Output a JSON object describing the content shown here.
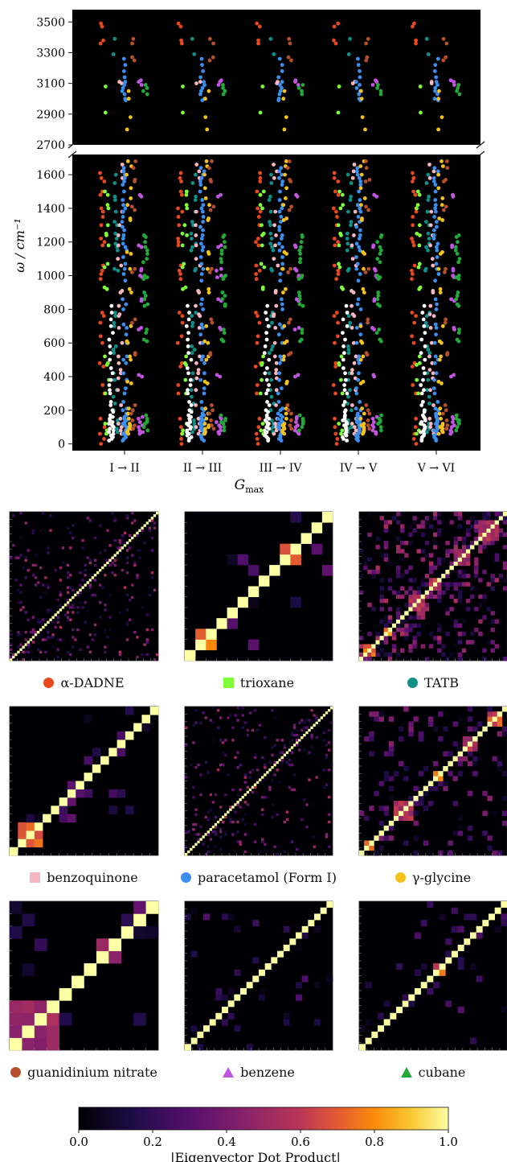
{
  "chart_data": [
    {
      "type": "scatter",
      "title": "",
      "xlabel": "G_max",
      "xlabel_main": "G",
      "xlabel_sub": "max",
      "ylabel": "ω / cm⁻¹",
      "categories": [
        "I → II",
        "II → III",
        "III → IV",
        "IV → V",
        "V → VI"
      ],
      "axis_break": true,
      "ylim_top": [
        2700,
        3580
      ],
      "ylim_bottom": [
        -40,
        1720
      ],
      "yticks_top": [
        "2700",
        "2900",
        "3100",
        "3300",
        "3500"
      ],
      "yticks_bottom": [
        "0",
        "200",
        "400",
        "600",
        "800",
        "1000",
        "1200",
        "1400",
        "1600"
      ],
      "background": "#000000",
      "series": [
        {
          "key": "dadne",
          "color": "#e8481c",
          "offset": -0.3,
          "values": [
            3490,
            3470,
            3380,
            3360,
            1610,
            1580,
            1560,
            1500,
            1480,
            1400,
            1380,
            1350,
            1300,
            1220,
            1200,
            1180,
            1060,
            1030,
            1010,
            980,
            780,
            760,
            720,
            640,
            600,
            480,
            460,
            350,
            300,
            150,
            100,
            60,
            30,
            0
          ]
        },
        {
          "key": "trioxane",
          "color": "#7fff3a",
          "offset": -0.24,
          "values": [
            3080,
            2910,
            1500,
            1480,
            1420,
            1400,
            1300,
            1250,
            1240,
            1180,
            1070,
            1050,
            930,
            920,
            520,
            480,
            470,
            380,
            300,
            120,
            80,
            60
          ]
        },
        {
          "key": "tatb",
          "color": "#0f8f85",
          "offset": -0.12,
          "values": [
            3390,
            3290,
            1600,
            1550,
            1470,
            1450,
            1380,
            1320,
            1300,
            1250,
            1220,
            1190,
            1170,
            1150,
            1040,
            1030,
            780,
            760,
            720,
            700,
            580,
            560,
            540,
            420,
            380,
            320,
            280,
            240,
            200,
            140,
            120,
            100,
            90,
            70
          ]
        },
        {
          "key": "benzoquinone",
          "color": "#f7b6c0",
          "offset": -0.06,
          "values": [
            3110,
            3100,
            1660,
            1620,
            1580,
            1380,
            1300,
            1240,
            1180,
            1100,
            1060,
            910,
            900,
            820,
            770,
            760,
            690,
            600,
            520,
            480,
            440,
            420,
            390,
            320,
            230,
            150,
            120,
            100,
            80,
            60
          ]
        },
        {
          "key": "paracetamol",
          "color": "#3a8ff0",
          "offset": 0.0,
          "values": [
            3260,
            3220,
            3180,
            3140,
            3110,
            3090,
            3070,
            3050,
            3030,
            3000,
            2990,
            1640,
            1620,
            1600,
            1580,
            1560,
            1540,
            1500,
            1450,
            1420,
            1400,
            1380,
            1350,
            1320,
            1290,
            1270,
            1240,
            1220,
            1190,
            1170,
            1150,
            1110,
            1070,
            1040,
            1010,
            970,
            860,
            830,
            800,
            710,
            690,
            650,
            600,
            520,
            500,
            480,
            420,
            380,
            330,
            300,
            250,
            210,
            200,
            180,
            170,
            160,
            150,
            140,
            130,
            120,
            110,
            100,
            90,
            80,
            70,
            60,
            50,
            40,
            30,
            20
          ]
        },
        {
          "key": "glycine",
          "color": "#f4c21b",
          "offset": 0.06,
          "values": [
            3050,
            3000,
            2880,
            2800,
            1680,
            1650,
            1600,
            1520,
            1460,
            1420,
            1340,
            1330,
            1140,
            1130,
            1040,
            920,
            900,
            700,
            610,
            600,
            520,
            500,
            370,
            360,
            210,
            180,
            150,
            120,
            110,
            100,
            90,
            80,
            70,
            60
          ]
        },
        {
          "key": "guanidinium",
          "color": "#b5502c",
          "offset": 0.12,
          "values": [
            3390,
            3360,
            3270,
            3250,
            1680,
            1640,
            1570,
            1560,
            1410,
            1390,
            1040,
            1020,
            740,
            720,
            540,
            530,
            230,
            200,
            180,
            140,
            110,
            90
          ]
        },
        {
          "key": "benzene",
          "color": "#c155e0",
          "offset": 0.22,
          "values": [
            3120,
            3110,
            3090,
            1480,
            1470,
            1180,
            1170,
            1040,
            1030,
            1000,
            990,
            860,
            850,
            690,
            680,
            410,
            400,
            160,
            150,
            130,
            110,
            100,
            80,
            70,
            60
          ]
        },
        {
          "key": "cubane",
          "color": "#23a83a",
          "offset": 0.28,
          "values": [
            3090,
            3070,
            3050,
            3030,
            1240,
            1230,
            1200,
            1170,
            1150,
            1130,
            1100,
            1080,
            1000,
            990,
            980,
            900,
            880,
            860,
            830,
            820,
            680,
            660,
            620,
            610,
            170,
            150,
            140,
            130,
            120,
            100,
            80
          ]
        },
        {
          "key": "lowfreq-white",
          "color": "#ffffff",
          "offset": -0.18,
          "values": [
            820,
            780,
            740,
            700,
            660,
            620,
            580,
            540,
            500,
            450,
            420,
            380,
            350,
            320,
            300,
            250,
            230,
            200,
            190,
            170,
            160,
            150,
            140,
            130,
            120,
            110,
            100,
            90,
            80,
            70,
            60,
            50,
            40,
            30,
            20
          ]
        }
      ]
    },
    {
      "type": "heatmap",
      "colorbar": {
        "label": "|Eigenvector Dot Product|",
        "ticks": [
          "0.0",
          "0.2",
          "0.4",
          "0.6",
          "0.8",
          "1.0"
        ],
        "range": [
          0,
          1
        ],
        "colormap": "inferno"
      },
      "panels": [
        {
          "key": "dadne",
          "label": "α-DADNE",
          "marker": "circle",
          "color": "#e8481c",
          "n": 60,
          "style": "sparse",
          "blocks": []
        },
        {
          "key": "trioxane",
          "label": "trioxane",
          "marker": "square",
          "color": "#7fff3a",
          "n": 14,
          "style": "blocks",
          "blocks": [
            [
              1,
              2,
              0.72
            ],
            [
              9,
              2,
              0.68
            ]
          ]
        },
        {
          "key": "tatb",
          "label": "TATB",
          "marker": "circle",
          "color": "#0f8f85",
          "n": 36,
          "style": "dense",
          "blocks": [
            [
              1,
              3,
              0.7
            ],
            [
              6,
              2,
              0.75
            ],
            [
              12,
              4,
              0.55
            ],
            [
              17,
              3,
              0.6
            ],
            [
              23,
              4,
              0.5
            ],
            [
              29,
              5,
              0.55
            ]
          ]
        },
        {
          "key": "benzoquinone",
          "label": "benzoquinone",
          "marker": "square",
          "color": "#f7b6c0",
          "n": 18,
          "style": "blocks",
          "blocks": [
            [
              1,
              3,
              0.72
            ]
          ]
        },
        {
          "key": "paracetamol",
          "label": "paracetamol (Form I)",
          "marker": "circle",
          "color": "#3a8ff0",
          "n": 60,
          "style": "sparse",
          "blocks": []
        },
        {
          "key": "glycine",
          "label": "γ-glycine",
          "marker": "circle",
          "color": "#f4c21b",
          "n": 30,
          "style": "medium",
          "blocks": [
            [
              1,
              2,
              0.72
            ],
            [
              7,
              4,
              0.55
            ],
            [
              15,
              2,
              0.7
            ],
            [
              21,
              3,
              0.55
            ],
            [
              26,
              3,
              0.65
            ]
          ]
        },
        {
          "key": "guanidinium",
          "label": "guanidinium nitrate",
          "marker": "circle",
          "color": "#b5502c",
          "n": 12,
          "style": "blocks",
          "blocks": [
            [
              0,
              4,
              0.5
            ],
            [
              7,
              2,
              0.45
            ]
          ]
        },
        {
          "key": "benzene",
          "label": "benzene",
          "marker": "triangle",
          "color": "#c155e0",
          "n": 24,
          "style": "identity",
          "blocks": []
        },
        {
          "key": "cubane",
          "label": "cubane",
          "marker": "triangle",
          "color": "#23a83a",
          "n": 24,
          "style": "identity",
          "blocks": [
            [
              12,
              2,
              0.68
            ]
          ]
        }
      ]
    }
  ]
}
